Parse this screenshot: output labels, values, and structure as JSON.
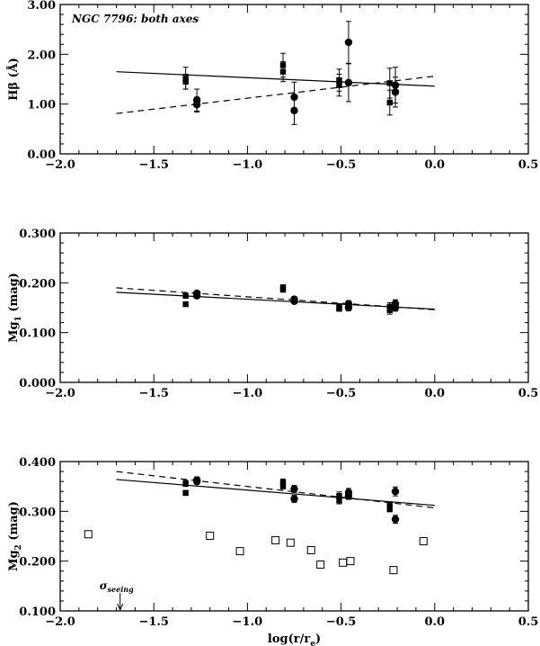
{
  "chart_data": [
    {
      "type": "scatter",
      "ylabel_main": "Hβ",
      "ylabel_unit": "(Å)",
      "annotation": "NGC 7796: both axes",
      "xlim": [
        -2.0,
        0.5
      ],
      "ylim": [
        0.0,
        3.0
      ],
      "x_ticks": [
        "−2.0",
        "−1.5",
        "−1.0",
        "−0.5",
        "0.0",
        "0.5"
      ],
      "y_ticks": [
        "0.00",
        "1.00",
        "2.00",
        "3.00"
      ],
      "y_tick_values": [
        0,
        1,
        2,
        3
      ],
      "x_minor_step": 0.1,
      "y_minor_step": 0.2,
      "series": [
        {
          "marker": "filled-square",
          "points": [
            {
              "x": -1.33,
              "y": 1.52,
              "err": 0.22
            },
            {
              "x": -1.33,
              "y": 1.45,
              "err": 0.15
            },
            {
              "x": -0.81,
              "y": 1.78,
              "err": 0.24
            },
            {
              "x": -0.81,
              "y": 1.65,
              "err": 0.2
            },
            {
              "x": -0.51,
              "y": 1.48,
              "err": 0.22
            },
            {
              "x": -0.51,
              "y": 1.38,
              "err": 0.22
            },
            {
              "x": -0.24,
              "y": 1.42,
              "err": 0.3
            },
            {
              "x": -0.24,
              "y": 1.03,
              "err": 0.25
            }
          ]
        },
        {
          "marker": "filled-circle",
          "points": [
            {
              "x": -1.27,
              "y": 1.08,
              "err": 0.22
            },
            {
              "x": -1.27,
              "y": 0.99,
              "err": 0.15
            },
            {
              "x": -0.75,
              "y": 1.14,
              "err": 0.3
            },
            {
              "x": -0.75,
              "y": 0.87,
              "err": 0.28
            },
            {
              "x": -0.46,
              "y": 2.24,
              "err": 0.42
            },
            {
              "x": -0.46,
              "y": 1.43,
              "err": 0.38
            },
            {
              "x": -0.21,
              "y": 1.38,
              "err": 0.36
            },
            {
              "x": -0.21,
              "y": 1.24,
              "err": 0.3
            }
          ]
        }
      ],
      "fits": [
        {
          "style": "solid",
          "x": [
            -1.7,
            0.0
          ],
          "y": [
            1.65,
            1.36
          ]
        },
        {
          "style": "dashed",
          "x": [
            -1.7,
            0.0
          ],
          "y": [
            0.81,
            1.56
          ]
        }
      ]
    },
    {
      "type": "scatter",
      "ylabel_main": "Mg",
      "ylabel_sub": "1",
      "ylabel_unit": "(mag)",
      "xlim": [
        -2.0,
        0.5
      ],
      "ylim": [
        0.0,
        0.3
      ],
      "x_ticks": [
        "−2.0",
        "−1.5",
        "−1.0",
        "−0.5",
        "0.0",
        "0.5"
      ],
      "y_ticks": [
        "0.000",
        "0.100",
        "0.200",
        "0.300"
      ],
      "y_tick_values": [
        0,
        0.1,
        0.2,
        0.3
      ],
      "x_minor_step": 0.1,
      "y_minor_step": 0.02,
      "series": [
        {
          "marker": "filled-square",
          "points": [
            {
              "x": -1.33,
              "y": 0.174,
              "err": 0.005
            },
            {
              "x": -1.33,
              "y": 0.157,
              "err": 0.004
            },
            {
              "x": -0.81,
              "y": 0.191,
              "err": 0.005
            },
            {
              "x": -0.81,
              "y": 0.186,
              "err": 0.004
            },
            {
              "x": -0.51,
              "y": 0.152,
              "err": 0.006
            },
            {
              "x": -0.51,
              "y": 0.148,
              "err": 0.005
            },
            {
              "x": -0.24,
              "y": 0.152,
              "err": 0.008
            },
            {
              "x": -0.24,
              "y": 0.145,
              "err": 0.008
            }
          ]
        },
        {
          "marker": "filled-circle",
          "points": [
            {
              "x": -1.27,
              "y": 0.179,
              "err": 0.005
            },
            {
              "x": -1.27,
              "y": 0.174,
              "err": 0.004
            },
            {
              "x": -0.75,
              "y": 0.167,
              "err": 0.005
            },
            {
              "x": -0.75,
              "y": 0.163,
              "err": 0.005
            },
            {
              "x": -0.46,
              "y": 0.158,
              "err": 0.006
            },
            {
              "x": -0.46,
              "y": 0.15,
              "err": 0.006
            },
            {
              "x": -0.21,
              "y": 0.158,
              "err": 0.008
            },
            {
              "x": -0.21,
              "y": 0.15,
              "err": 0.007
            }
          ]
        }
      ],
      "fits": [
        {
          "style": "solid",
          "x": [
            -1.7,
            0.0
          ],
          "y": [
            0.181,
            0.147
          ]
        },
        {
          "style": "dashed",
          "x": [
            -1.7,
            0.0
          ],
          "y": [
            0.19,
            0.146
          ]
        }
      ]
    },
    {
      "type": "scatter",
      "ylabel_main": "Mg",
      "ylabel_sub": "2",
      "ylabel_unit": "(mag)",
      "xlabel_main": "log(r/r",
      "xlabel_sub": "e",
      "xlabel_tail": ")",
      "seeing_label": "σ",
      "seeing_sub": "seeing",
      "seeing_x": -1.68,
      "xlim": [
        -2.0,
        0.5
      ],
      "ylim": [
        0.1,
        0.4
      ],
      "x_ticks": [
        "−2.0",
        "−1.5",
        "−1.0",
        "−0.5",
        "0.0",
        "0.5"
      ],
      "y_ticks": [
        "0.100",
        "0.200",
        "0.300",
        "0.400"
      ],
      "y_tick_values": [
        0.1,
        0.2,
        0.3,
        0.4
      ],
      "x_minor_step": 0.1,
      "y_minor_step": 0.02,
      "series": [
        {
          "marker": "filled-square",
          "points": [
            {
              "x": -1.33,
              "y": 0.356,
              "err": 0.006
            },
            {
              "x": -1.33,
              "y": 0.337,
              "err": 0.005
            },
            {
              "x": -0.81,
              "y": 0.358,
              "err": 0.007
            },
            {
              "x": -0.81,
              "y": 0.351,
              "err": 0.006
            },
            {
              "x": -0.51,
              "y": 0.331,
              "err": 0.008
            },
            {
              "x": -0.51,
              "y": 0.322,
              "err": 0.007
            },
            {
              "x": -0.24,
              "y": 0.312,
              "err": 0.007
            },
            {
              "x": -0.24,
              "y": 0.305,
              "err": 0.006
            }
          ]
        },
        {
          "marker": "filled-circle",
          "points": [
            {
              "x": -1.27,
              "y": 0.363,
              "err": 0.006
            },
            {
              "x": -1.27,
              "y": 0.36,
              "err": 0.005
            },
            {
              "x": -0.75,
              "y": 0.345,
              "err": 0.007
            },
            {
              "x": -0.75,
              "y": 0.325,
              "err": 0.007
            },
            {
              "x": -0.46,
              "y": 0.338,
              "err": 0.008
            },
            {
              "x": -0.46,
              "y": 0.331,
              "err": 0.007
            },
            {
              "x": -0.21,
              "y": 0.34,
              "err": 0.009
            },
            {
              "x": -0.21,
              "y": 0.284,
              "err": 0.008
            }
          ]
        },
        {
          "marker": "open-square",
          "points": [
            {
              "x": -1.85,
              "y": 0.254
            },
            {
              "x": -1.2,
              "y": 0.251
            },
            {
              "x": -1.04,
              "y": 0.22
            },
            {
              "x": -0.85,
              "y": 0.242
            },
            {
              "x": -0.77,
              "y": 0.237
            },
            {
              "x": -0.66,
              "y": 0.222
            },
            {
              "x": -0.61,
              "y": 0.193
            },
            {
              "x": -0.49,
              "y": 0.197
            },
            {
              "x": -0.45,
              "y": 0.2
            },
            {
              "x": -0.22,
              "y": 0.182
            },
            {
              "x": -0.06,
              "y": 0.24
            }
          ]
        }
      ],
      "fits": [
        {
          "style": "solid",
          "x": [
            -1.7,
            0.0
          ],
          "y": [
            0.364,
            0.312
          ]
        },
        {
          "style": "dashed",
          "x": [
            -1.7,
            0.0
          ],
          "y": [
            0.38,
            0.307
          ]
        }
      ]
    }
  ]
}
